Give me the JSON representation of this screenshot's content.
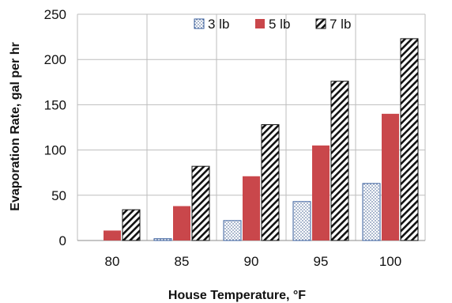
{
  "chart_data": {
    "type": "bar",
    "title": "",
    "xlabel": "House Temperature, °F",
    "ylabel": "Evaporation Rate, gal per hr",
    "categories": [
      "80",
      "85",
      "90",
      "95",
      "100"
    ],
    "ylim": [
      0,
      250
    ],
    "yticks": [
      0,
      50,
      100,
      150,
      200,
      250
    ],
    "grid": true,
    "legend_position": "top-right",
    "series": [
      {
        "name": "3 lb",
        "values": [
          0,
          2,
          22,
          43,
          63
        ],
        "color": "#3a5f9e",
        "pattern": "dotted"
      },
      {
        "name": "5 lb",
        "values": [
          11,
          38,
          71,
          105,
          140
        ],
        "color": "#c9474b",
        "pattern": "solid"
      },
      {
        "name": "7 lb",
        "values": [
          34,
          82,
          128,
          176,
          223
        ],
        "color": "#111111",
        "pattern": "diagonal-hatch"
      }
    ]
  }
}
